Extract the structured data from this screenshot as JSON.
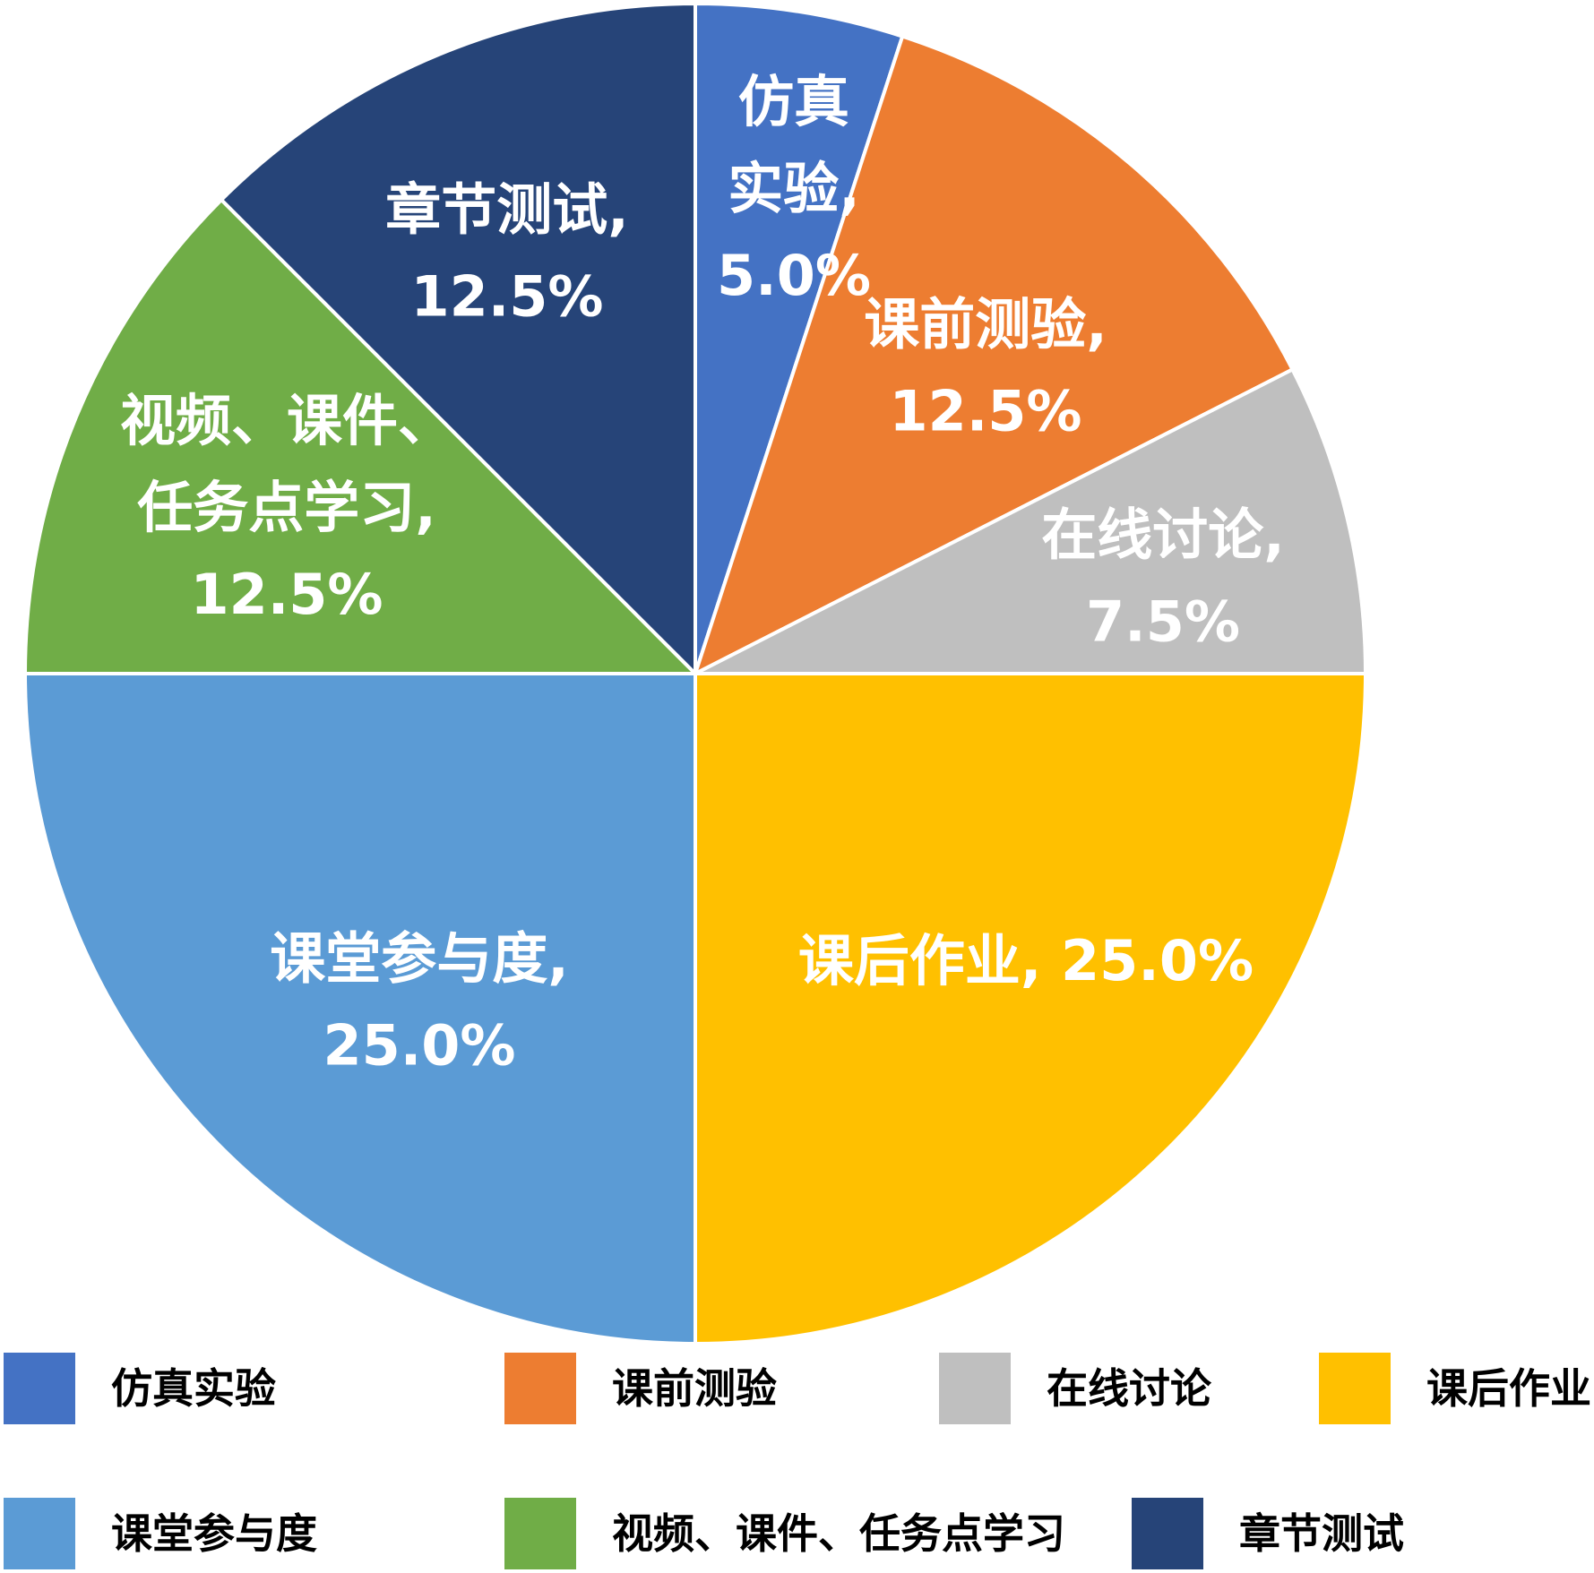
{
  "chart_data": {
    "type": "pie",
    "title": "",
    "start_angle_deg": 0,
    "direction": "clockwise",
    "legend_position": "bottom",
    "slices": [
      {
        "label": "仿真实验",
        "value": 5.0,
        "color": "#4472C4",
        "data_label_lines": [
          "仿真",
          "实验,",
          "5.0%"
        ]
      },
      {
        "label": "课前测验",
        "value": 12.5,
        "color": "#ED7D31",
        "data_label_lines": [
          "课前测验,",
          "12.5%"
        ]
      },
      {
        "label": "在线讨论",
        "value": 7.5,
        "color": "#BFBFBF",
        "data_label_lines": [
          "在线讨论,",
          "7.5%"
        ]
      },
      {
        "label": "课后作业",
        "value": 25.0,
        "color": "#FFC000",
        "data_label_lines": [
          "课后作业, 25.0%"
        ]
      },
      {
        "label": "课堂参与度",
        "value": 25.0,
        "color": "#5B9BD5",
        "data_label_lines": [
          "课堂参与度,",
          "25.0%"
        ]
      },
      {
        "label": "视频、课件、任务点学习",
        "value": 12.5,
        "color": "#70AD47",
        "data_label_lines": [
          "视频、课件、",
          "任务点学习,",
          "12.5%"
        ]
      },
      {
        "label": "章节测试",
        "value": 12.5,
        "color": "#264478",
        "data_label_lines": [
          "章节测试,",
          "12.5%"
        ]
      }
    ]
  }
}
